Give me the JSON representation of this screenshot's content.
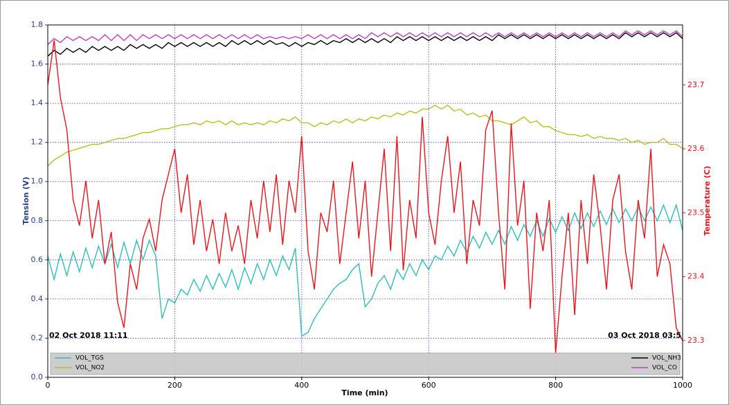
{
  "chart_data": {
    "type": "line",
    "x_label": "Time (min)",
    "y_label": "Tension (V)",
    "y2_label": "Temperature (C)",
    "annotations": [
      "02 Oct 2018 11:11",
      "03 Oct 2018 03:5"
    ],
    "xlim": [
      0,
      1000
    ],
    "xticks": [
      0,
      200,
      400,
      600,
      800,
      1000
    ],
    "ylim": [
      0,
      1.8
    ],
    "yticks": [
      {
        "value": 0,
        "label": "0.0"
      },
      0.2,
      0.4,
      0.6,
      0.8,
      {
        "value": 1,
        "label": "1.0"
      },
      1.2,
      1.4,
      1.6,
      1.8
    ],
    "y2lim": [
      23.2425,
      23.794
    ],
    "y2ticks": [
      23.3,
      23.4,
      23.5,
      23.6,
      23.7
    ],
    "grid": true,
    "legend": "bottom",
    "x": [
      0,
      10,
      20,
      30,
      40,
      50,
      60,
      70,
      80,
      90,
      100,
      110,
      120,
      130,
      140,
      150,
      160,
      170,
      180,
      190,
      200,
      210,
      220,
      230,
      240,
      250,
      260,
      270,
      280,
      290,
      300,
      310,
      320,
      330,
      340,
      350,
      360,
      370,
      380,
      390,
      400,
      410,
      420,
      430,
      440,
      450,
      460,
      470,
      480,
      490,
      500,
      510,
      520,
      530,
      540,
      550,
      560,
      570,
      580,
      590,
      600,
      610,
      620,
      630,
      640,
      650,
      660,
      670,
      680,
      690,
      700,
      710,
      720,
      730,
      740,
      750,
      760,
      770,
      780,
      790,
      800,
      810,
      820,
      830,
      840,
      850,
      860,
      870,
      880,
      890,
      900,
      910,
      920,
      930,
      940,
      950,
      960,
      970,
      980,
      990,
      1000
    ],
    "series": [
      {
        "name": "VOL_TGS",
        "color": "#2ebcbc",
        "values": [
          0.62,
          0.5,
          0.63,
          0.52,
          0.64,
          0.54,
          0.66,
          0.56,
          0.67,
          0.58,
          0.68,
          0.56,
          0.69,
          0.58,
          0.7,
          0.6,
          0.7,
          0.62,
          0.3,
          0.4,
          0.38,
          0.45,
          0.42,
          0.5,
          0.44,
          0.52,
          0.45,
          0.53,
          0.46,
          0.55,
          0.45,
          0.56,
          0.48,
          0.58,
          0.5,
          0.6,
          0.52,
          0.62,
          0.55,
          0.66,
          0.21,
          0.23,
          0.3,
          0.35,
          0.4,
          0.45,
          0.48,
          0.5,
          0.55,
          0.58,
          0.36,
          0.4,
          0.48,
          0.52,
          0.45,
          0.55,
          0.5,
          0.58,
          0.52,
          0.6,
          0.55,
          0.62,
          0.6,
          0.67,
          0.62,
          0.7,
          0.64,
          0.72,
          0.66,
          0.74,
          0.68,
          0.75,
          0.68,
          0.77,
          0.7,
          0.78,
          0.72,
          0.8,
          0.72,
          0.81,
          0.74,
          0.82,
          0.75,
          0.84,
          0.76,
          0.84,
          0.77,
          0.85,
          0.78,
          0.86,
          0.79,
          0.86,
          0.8,
          0.87,
          0.8,
          0.87,
          0.8,
          0.88,
          0.79,
          0.88,
          0.75
        ]
      },
      {
        "name": "VOL_NO2",
        "color": "#bcbd22",
        "values": [
          1.08,
          1.11,
          1.13,
          1.15,
          1.16,
          1.17,
          1.18,
          1.19,
          1.19,
          1.2,
          1.21,
          1.22,
          1.22,
          1.23,
          1.24,
          1.25,
          1.25,
          1.26,
          1.27,
          1.27,
          1.28,
          1.29,
          1.29,
          1.3,
          1.29,
          1.31,
          1.3,
          1.31,
          1.29,
          1.31,
          1.29,
          1.3,
          1.29,
          1.3,
          1.29,
          1.31,
          1.3,
          1.32,
          1.31,
          1.33,
          1.3,
          1.3,
          1.28,
          1.3,
          1.29,
          1.31,
          1.3,
          1.32,
          1.3,
          1.32,
          1.31,
          1.33,
          1.32,
          1.34,
          1.33,
          1.35,
          1.34,
          1.36,
          1.35,
          1.37,
          1.37,
          1.39,
          1.37,
          1.39,
          1.36,
          1.37,
          1.34,
          1.35,
          1.33,
          1.34,
          1.31,
          1.31,
          1.3,
          1.29,
          1.31,
          1.33,
          1.3,
          1.31,
          1.28,
          1.28,
          1.26,
          1.25,
          1.24,
          1.24,
          1.23,
          1.24,
          1.22,
          1.23,
          1.22,
          1.22,
          1.21,
          1.22,
          1.2,
          1.21,
          1.19,
          1.2,
          1.2,
          1.22,
          1.19,
          1.19,
          1.17
        ]
      },
      {
        "name": "VOL_NH3",
        "color": "#000000",
        "values": [
          1.64,
          1.67,
          1.65,
          1.68,
          1.66,
          1.68,
          1.66,
          1.69,
          1.67,
          1.69,
          1.67,
          1.69,
          1.67,
          1.7,
          1.68,
          1.7,
          1.68,
          1.7,
          1.68,
          1.71,
          1.69,
          1.71,
          1.69,
          1.71,
          1.69,
          1.71,
          1.69,
          1.71,
          1.69,
          1.72,
          1.7,
          1.72,
          1.7,
          1.72,
          1.7,
          1.72,
          1.7,
          1.71,
          1.69,
          1.71,
          1.69,
          1.71,
          1.7,
          1.72,
          1.7,
          1.72,
          1.71,
          1.73,
          1.71,
          1.73,
          1.71,
          1.73,
          1.71,
          1.73,
          1.71,
          1.74,
          1.72,
          1.74,
          1.72,
          1.74,
          1.72,
          1.74,
          1.72,
          1.74,
          1.72,
          1.74,
          1.72,
          1.74,
          1.72,
          1.74,
          1.72,
          1.75,
          1.73,
          1.75,
          1.73,
          1.75,
          1.73,
          1.75,
          1.73,
          1.75,
          1.73,
          1.75,
          1.73,
          1.75,
          1.73,
          1.75,
          1.73,
          1.75,
          1.73,
          1.75,
          1.73,
          1.76,
          1.74,
          1.76,
          1.74,
          1.76,
          1.74,
          1.76,
          1.74,
          1.76,
          1.73
        ]
      },
      {
        "name": "VOL_CO",
        "color": "#bf3fbf",
        "values": [
          1.7,
          1.73,
          1.71,
          1.74,
          1.72,
          1.74,
          1.72,
          1.74,
          1.72,
          1.75,
          1.72,
          1.75,
          1.72,
          1.75,
          1.72,
          1.75,
          1.73,
          1.75,
          1.73,
          1.75,
          1.73,
          1.75,
          1.73,
          1.75,
          1.73,
          1.75,
          1.73,
          1.75,
          1.73,
          1.75,
          1.73,
          1.75,
          1.73,
          1.75,
          1.73,
          1.74,
          1.73,
          1.74,
          1.73,
          1.74,
          1.73,
          1.75,
          1.73,
          1.75,
          1.73,
          1.75,
          1.73,
          1.75,
          1.73,
          1.75,
          1.73,
          1.76,
          1.74,
          1.76,
          1.74,
          1.76,
          1.74,
          1.76,
          1.74,
          1.76,
          1.74,
          1.76,
          1.74,
          1.76,
          1.74,
          1.76,
          1.74,
          1.76,
          1.74,
          1.76,
          1.74,
          1.76,
          1.74,
          1.76,
          1.74,
          1.76,
          1.74,
          1.76,
          1.74,
          1.76,
          1.74,
          1.76,
          1.74,
          1.76,
          1.74,
          1.76,
          1.74,
          1.76,
          1.74,
          1.76,
          1.74,
          1.77,
          1.75,
          1.77,
          1.75,
          1.77,
          1.75,
          1.77,
          1.75,
          1.77,
          1.74
        ]
      }
    ],
    "y2_series": {
      "color": "#e8141c",
      "axis": "y2",
      "values": [
        23.7,
        23.77,
        23.68,
        23.63,
        23.52,
        23.48,
        23.55,
        23.46,
        23.52,
        23.42,
        23.47,
        23.36,
        23.32,
        23.42,
        23.38,
        23.46,
        23.49,
        23.44,
        23.52,
        23.56,
        23.6,
        23.5,
        23.56,
        23.45,
        23.52,
        23.44,
        23.49,
        23.42,
        23.5,
        23.44,
        23.48,
        23.42,
        23.52,
        23.46,
        23.55,
        23.47,
        23.56,
        23.45,
        23.55,
        23.5,
        23.62,
        23.44,
        23.38,
        23.5,
        23.47,
        23.55,
        23.42,
        23.5,
        23.58,
        23.46,
        23.55,
        23.4,
        23.5,
        23.6,
        23.44,
        23.62,
        23.41,
        23.52,
        23.46,
        23.65,
        23.5,
        23.45,
        23.55,
        23.62,
        23.5,
        23.58,
        23.42,
        23.52,
        23.48,
        23.63,
        23.66,
        23.5,
        23.38,
        23.64,
        23.48,
        23.55,
        23.35,
        23.5,
        23.44,
        23.52,
        23.28,
        23.4,
        23.5,
        23.34,
        23.52,
        23.42,
        23.56,
        23.48,
        23.38,
        23.52,
        23.56,
        23.44,
        23.38,
        23.52,
        23.46,
        23.6,
        23.4,
        23.45,
        23.42,
        23.32,
        23.3
      ]
    }
  }
}
